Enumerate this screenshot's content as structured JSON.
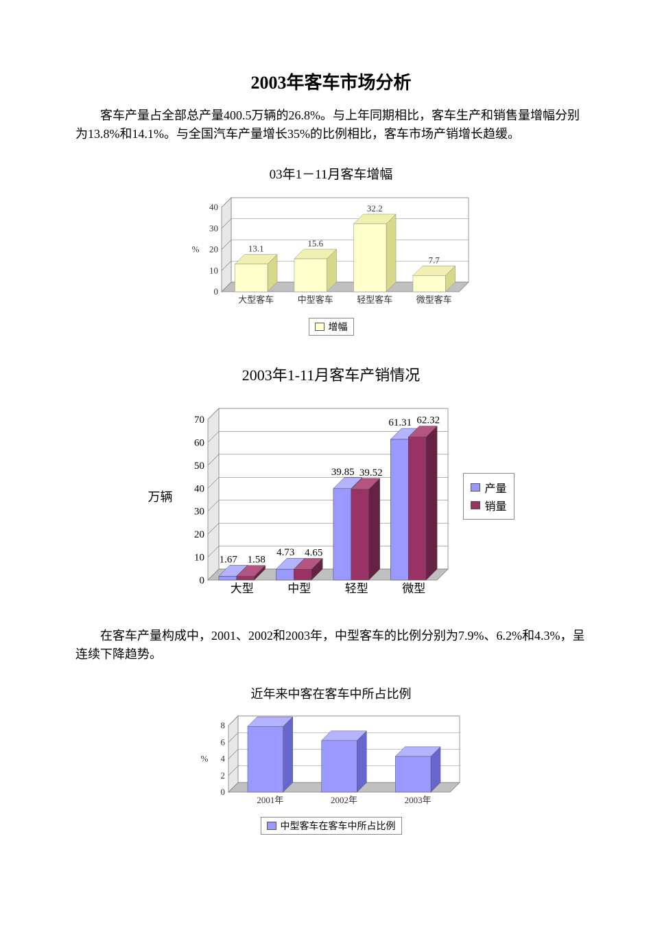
{
  "title": "2003年客车市场分析",
  "para1": "客车产量占全部总产量400.5万辆的26.8%。与上年同期相比，客车生产和销售量增幅分别为13.8%和14.1%。与全国汽车产量增长35%的比例相比，客车市场产销增长趋缓。",
  "para2": "在客车产量构成中，2001、2002和2003年，中型客车的比例分别为7.9%、6.2%和4.3%，呈连续下降趋势。",
  "chart1": {
    "type": "bar",
    "title": "03年1－11月客车增幅",
    "categories": [
      "大型客车",
      "中型客车",
      "轻型客车",
      "微型客车"
    ],
    "values": [
      13.1,
      15.6,
      32.2,
      7.7
    ],
    "value_labels": [
      "13.1",
      "15.6",
      "32.2",
      "7.7"
    ],
    "ylabel": "%",
    "ylim": [
      0,
      40
    ],
    "ytick_step": 10,
    "yticks": [
      "0",
      "10",
      "20",
      "30",
      "40"
    ],
    "bar_fill": "#ffffcc",
    "bar_top_fill": "#f0f0b0",
    "bar_side_fill": "#d8d88a",
    "floor_fill": "#c0c0c0",
    "backwall_fill": "#ffffff",
    "grid_color": "#808080",
    "text_color": "#333333",
    "legend_label": "增幅",
    "label_fontsize": 13,
    "bar_width": 0.55,
    "depth": 14
  },
  "chart2": {
    "type": "bar",
    "title": "2003年1-11月客车产销情况",
    "categories": [
      "大型",
      "中型",
      "轻型",
      "微型"
    ],
    "series": [
      {
        "name": "产量",
        "fill": "#9999ff",
        "side": "#6666cc",
        "top": "#b3b3ff",
        "values": [
          1.67,
          4.73,
          39.85,
          61.31
        ],
        "labels": [
          "1.67",
          "4.73",
          "39.85",
          "61.31"
        ]
      },
      {
        "name": "销量",
        "fill": "#993366",
        "side": "#662244",
        "top": "#b35580",
        "values": [
          1.58,
          4.65,
          39.52,
          62.32
        ],
        "labels": [
          "1.58",
          "4.65",
          "39.52",
          "62.32"
        ]
      }
    ],
    "ylabel": "万辆",
    "ylim": [
      0,
      70
    ],
    "ytick_step": 10,
    "yticks": [
      "0",
      "10",
      "20",
      "30",
      "40",
      "50",
      "60",
      "70"
    ],
    "floor_fill": "#c0c0c0",
    "grid_color": "#808080",
    "text_color": "#000000",
    "label_fontsize": 15,
    "depth": 16
  },
  "chart3": {
    "type": "bar",
    "title": "近年来中客在客车中所占比例",
    "categories": [
      "2001年",
      "2002年",
      "2003年"
    ],
    "values": [
      7.9,
      6.2,
      4.3
    ],
    "ylabel": "%",
    "ylim": [
      0,
      8
    ],
    "ytick_step": 2,
    "yticks": [
      "0",
      "2",
      "4",
      "6",
      "8"
    ],
    "bar_fill": "#9999ff",
    "bar_side_fill": "#6666cc",
    "bar_top_fill": "#b3b3ff",
    "floor_fill": "#c0c0c0",
    "grid_color": "#808080",
    "text_color": "#333333",
    "legend_label": "中型客车在客车中所占比例",
    "label_fontsize": 13,
    "depth": 14
  }
}
